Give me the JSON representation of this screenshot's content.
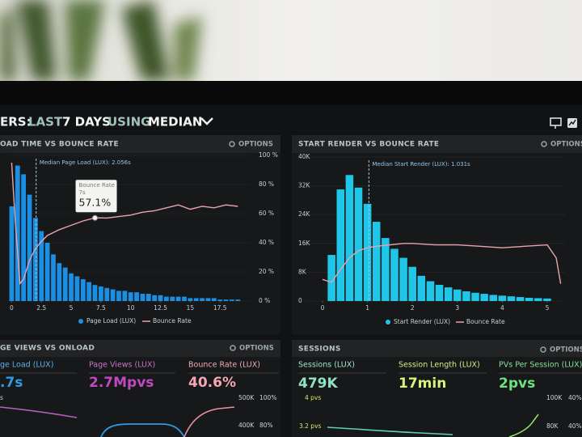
{
  "header": {
    "title_parts": [
      "ERS:",
      "LAST",
      "7 DAYS",
      "USING",
      "MEDIAN"
    ]
  },
  "panels": [
    {
      "title": "OAD TIME VS BOUNCE RATE",
      "options": "OPTIONS",
      "chart": {
        "type": "histogram",
        "bins": [
          -0.25,
          0.25,
          0.75,
          1.25,
          1.75,
          2.25,
          2.75,
          3.25,
          3.75,
          4.25,
          4.75,
          5.25,
          5.75,
          6.25,
          6.75,
          7.25,
          7.75,
          8.25,
          8.75,
          9.25,
          9.75,
          10.25,
          10.75,
          11.25,
          11.75,
          12.25,
          12.75,
          13.25,
          13.75,
          14.25,
          14.75,
          15.25,
          15.75,
          16.25,
          16.75,
          17.25,
          17.75,
          18.25,
          18.75,
          19.25
        ],
        "series": [
          {
            "name": "Page Load (LUX)",
            "color": "#1a8fe3",
            "values": [
              65,
              93,
              87,
              73,
              57,
              48,
              40,
              32,
              26,
              23,
              19,
              17,
              15,
              13,
              11,
              10,
              9,
              8,
              7,
              7,
              6,
              6,
              5,
              5,
              4,
              4,
              3,
              3,
              3,
              3,
              2,
              2,
              2,
              2,
              2,
              1,
              1,
              1,
              1
            ]
          },
          {
            "name": "Bounce Rate",
            "type": "line",
            "axis": "y2",
            "color": "#e9a3ad",
            "x": [
              0,
              0.3,
              0.7,
              1,
              1.5,
              2,
              2.5,
              3,
              4,
              5,
              6,
              7,
              8,
              9,
              10,
              11,
              12,
              13,
              14,
              15,
              16,
              17,
              18,
              19
            ],
            "values": [
              95,
              55,
              12,
              15,
              28,
              36,
              41,
              45,
              49,
              52,
              55,
              57.1,
              57,
              58,
              59,
              61,
              62,
              64,
              66,
              63,
              65,
              64,
              66,
              65
            ]
          }
        ],
        "xlim": [
          -0.3,
          20
        ],
        "xticks": [
          0,
          2.5,
          5,
          7.5,
          10,
          12.5,
          15,
          17.5
        ],
        "ylim": [
          0,
          100
        ],
        "y2lim": [
          0,
          100
        ],
        "y2ticks": [
          {
            "value": 0,
            "label": "0 %"
          },
          {
            "value": 20,
            "label": "20 %"
          },
          {
            "value": 40,
            "label": "40 %"
          },
          {
            "value": 60,
            "label": "60 %"
          },
          {
            "value": 80,
            "label": "80 %"
          },
          {
            "value": 100,
            "label": "100 %"
          }
        ],
        "annotation": {
          "x": 2.056,
          "label": "Median Page Load (LUX): 2.056s"
        },
        "tooltip": {
          "label": "Bounce Rate",
          "x": 7,
          "x_label": "7s",
          "value": 57.1,
          "value_label": "57.1%"
        }
      }
    },
    {
      "title": "START RENDER VS BOUNCE RATE",
      "options": "OPTIONS",
      "chart": {
        "type": "histogram",
        "bins": [
          0.1,
          0.3,
          0.5,
          0.7,
          0.9,
          1.1,
          1.3,
          1.5,
          1.7,
          1.9,
          2.1,
          2.3,
          2.5,
          2.7,
          2.9,
          3.1,
          3.3,
          3.5,
          3.7,
          3.9,
          4.1,
          4.3,
          4.5,
          4.7,
          4.9,
          5.1
        ],
        "series": [
          {
            "name": "Start Render (LUX)",
            "color": "#1fc6e8",
            "values": [
              12800,
              31000,
              35000,
              31500,
              27000,
              22000,
              17500,
              14500,
              12000,
              9500,
              7000,
              5500,
              4500,
              3800,
              3200,
              2700,
              2300,
              2000,
              1700,
              1500,
              1300,
              1100,
              900,
              800,
              700
            ]
          },
          {
            "name": "Bounce Rate",
            "type": "line",
            "axis": "y2",
            "color": "#e9a3ad",
            "x": [
              0,
              0.2,
              0.4,
              0.6,
              0.8,
              1,
              1.2,
              1.5,
              1.8,
              2,
              2.5,
              3,
              3.5,
              4,
              4.5,
              5,
              5.2,
              5.3
            ],
            "values": [
              15,
              13,
              22,
              30,
              35,
              37,
              38,
              39,
              40,
              40,
              39,
              39,
              38,
              37,
              38,
              39,
              30,
              12
            ]
          }
        ],
        "xlim": [
          -0.4,
          5.4
        ],
        "xticks": [
          0,
          1,
          2,
          3,
          4,
          5
        ],
        "ylim": [
          0,
          40000
        ],
        "yticks": [
          0,
          {
            "value": 8000,
            "label": "8K"
          },
          {
            "value": 16000,
            "label": "16K"
          },
          {
            "value": 24000,
            "label": "24K"
          },
          {
            "value": 32000,
            "label": "32K"
          },
          {
            "value": 40000,
            "label": "40K"
          }
        ],
        "y2lim": [
          0,
          100
        ],
        "annotation": {
          "x": 1.031,
          "label": "Median Start Render (LUX): 1.031s"
        }
      }
    },
    {
      "title": "GE VIEWS VS ONLOAD",
      "options": "OPTIONS",
      "metrics": [
        {
          "label": "ge Load (LUX)",
          "value": ".7s"
        },
        {
          "label": "Page Views (LUX)",
          "value": "2.7Mpvs"
        },
        {
          "label": "Bounce Rate (LUX)",
          "value": "40.6%"
        }
      ],
      "axis_labels": [
        "s",
        "500K",
        "100%",
        "400K",
        "80%"
      ]
    },
    {
      "title": "SESSIONS",
      "options": "OPTIONS",
      "metrics": [
        {
          "label": "Sessions (LUX)",
          "value": "479K"
        },
        {
          "label": "Session Length (LUX)",
          "value": "17min"
        },
        {
          "label": "PVs Per Session (LUX)",
          "value": "2pvs"
        }
      ],
      "axis_labels": [
        "4 pvs",
        "3.2 pvs",
        "100K",
        "80K",
        "40%",
        "40%"
      ]
    }
  ]
}
